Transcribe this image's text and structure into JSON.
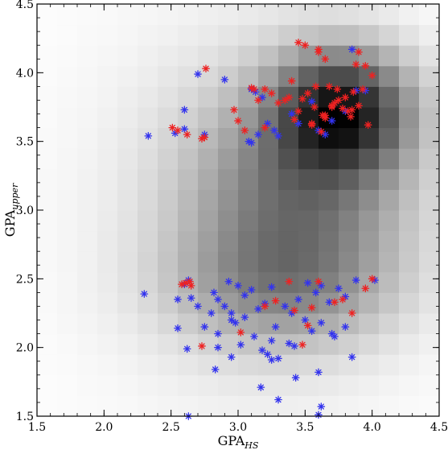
{
  "chart_data": {
    "type": "scatter",
    "title": "",
    "xlabel_main": "GPA",
    "xlabel_sub": "HS",
    "ylabel_main": "GPA",
    "ylabel_sub": "upper",
    "xlim": [
      1.5,
      4.5
    ],
    "ylim": [
      1.5,
      4.5
    ],
    "xticks": [
      "1.5",
      "2.0",
      "2.5",
      "3.0",
      "3.5",
      "4.0",
      "4.5"
    ],
    "yticks": [
      "1.5",
      "2.0",
      "2.5",
      "3.0",
      "3.5",
      "4.0",
      "4.5"
    ],
    "grid": false,
    "legend": "none",
    "background_density": {
      "type": "heatmap",
      "colormap": "grayscale",
      "x_edges_start": 1.5,
      "y_edges_start": 1.5,
      "bin_width": 0.15,
      "peak": [
        3.8,
        3.7
      ],
      "note_hidden": false
    },
    "series": [
      {
        "color": "#3333ee",
        "marker": "asterisk",
        "x": [
          2.33,
          2.53,
          2.6,
          2.7,
          2.75,
          2.9,
          2.6,
          3.08,
          3.15,
          3.18,
          3.13,
          3.22,
          3.27,
          3.4,
          3.45,
          3.55,
          3.65,
          3.7,
          3.85,
          3.95,
          3.6,
          3.8,
          3.3,
          3.1,
          3.1,
          3.88,
          2.3,
          2.6,
          2.63,
          2.65,
          2.7,
          2.82,
          2.85,
          2.93,
          2.95,
          3.0,
          3.05,
          3.1,
          3.25,
          3.35,
          3.45,
          3.52,
          3.58,
          3.62,
          3.68,
          3.75,
          3.8,
          4.02,
          2.8,
          2.9,
          2.95,
          3.05,
          3.15,
          3.2,
          3.28,
          3.4,
          3.5,
          3.7,
          2.55,
          2.75,
          2.85,
          2.98,
          3.12,
          3.25,
          3.55,
          3.62,
          3.72,
          3.8,
          2.85,
          2.95,
          3.02,
          3.18,
          3.3,
          3.42,
          3.62,
          2.83,
          3.17,
          3.3,
          3.43,
          3.6,
          2.63,
          3.88,
          2.55,
          3.6,
          3.22,
          3.25,
          3.38,
          3.85,
          2.62
        ],
        "y": [
          3.54,
          3.56,
          3.73,
          3.99,
          3.55,
          3.95,
          3.59,
          3.5,
          3.55,
          3.82,
          3.86,
          3.63,
          3.58,
          3.7,
          3.63,
          3.79,
          3.55,
          3.65,
          4.17,
          3.87,
          3.58,
          3.72,
          3.54,
          3.49,
          3.88,
          3.87,
          2.39,
          2.46,
          2.49,
          2.36,
          2.3,
          2.4,
          2.35,
          2.48,
          2.25,
          2.45,
          2.38,
          2.42,
          2.44,
          2.3,
          2.35,
          2.47,
          2.4,
          2.45,
          2.33,
          2.43,
          2.37,
          2.49,
          2.25,
          2.3,
          2.2,
          2.22,
          2.28,
          2.32,
          2.15,
          2.25,
          2.2,
          2.1,
          2.14,
          2.15,
          2.1,
          2.18,
          2.08,
          2.05,
          2.12,
          2.18,
          2.08,
          2.15,
          2.0,
          1.93,
          2.02,
          1.98,
          1.92,
          2.01,
          1.57,
          1.84,
          1.71,
          1.62,
          1.78,
          1.51,
          1.5,
          2.49,
          2.35,
          1.82,
          1.95,
          1.91,
          2.03,
          1.93,
          1.99
        ]
      },
      {
        "color": "#ee2222",
        "marker": "asterisk",
        "x": [
          2.51,
          2.62,
          2.73,
          2.76,
          2.97,
          3.0,
          3.05,
          3.12,
          3.2,
          3.25,
          3.3,
          3.35,
          3.38,
          3.42,
          3.45,
          3.48,
          3.52,
          3.55,
          3.58,
          3.6,
          3.63,
          3.65,
          3.68,
          3.7,
          3.72,
          3.75,
          3.78,
          3.8,
          3.82,
          3.84,
          3.86,
          3.88,
          3.9,
          3.93,
          3.95,
          3.97,
          4.0,
          3.5,
          3.6,
          3.65,
          3.7,
          3.55,
          3.45,
          3.4,
          3.62,
          3.74,
          3.85,
          3.9,
          3.1,
          3.15,
          3.2,
          2.61,
          2.58,
          2.65,
          2.64,
          3.2,
          3.28,
          3.42,
          3.55,
          3.78,
          3.85,
          3.95,
          4.0,
          3.38,
          3.52,
          3.72,
          2.73,
          3.02,
          3.48,
          3.6,
          2.55,
          2.75,
          3.57,
          3.65
        ],
        "y": [
          3.6,
          3.55,
          3.52,
          4.03,
          3.73,
          3.65,
          3.58,
          3.88,
          3.88,
          3.85,
          3.78,
          3.8,
          3.82,
          3.66,
          3.72,
          3.81,
          3.85,
          3.62,
          3.9,
          4.17,
          3.69,
          3.67,
          3.9,
          3.75,
          3.78,
          3.8,
          3.74,
          3.82,
          3.72,
          3.68,
          3.86,
          4.06,
          3.76,
          3.88,
          4.05,
          3.62,
          3.98,
          4.2,
          4.15,
          4.1,
          3.76,
          3.63,
          4.22,
          3.94,
          3.57,
          3.88,
          3.73,
          4.15,
          3.89,
          3.8,
          3.6,
          2.47,
          2.46,
          2.45,
          2.48,
          2.3,
          2.34,
          2.27,
          2.29,
          2.35,
          2.25,
          2.43,
          2.5,
          2.48,
          2.16,
          2.33,
          2.01,
          2.11,
          2.02,
          2.48,
          3.58,
          3.53,
          3.75,
          3.69
        ]
      }
    ]
  }
}
